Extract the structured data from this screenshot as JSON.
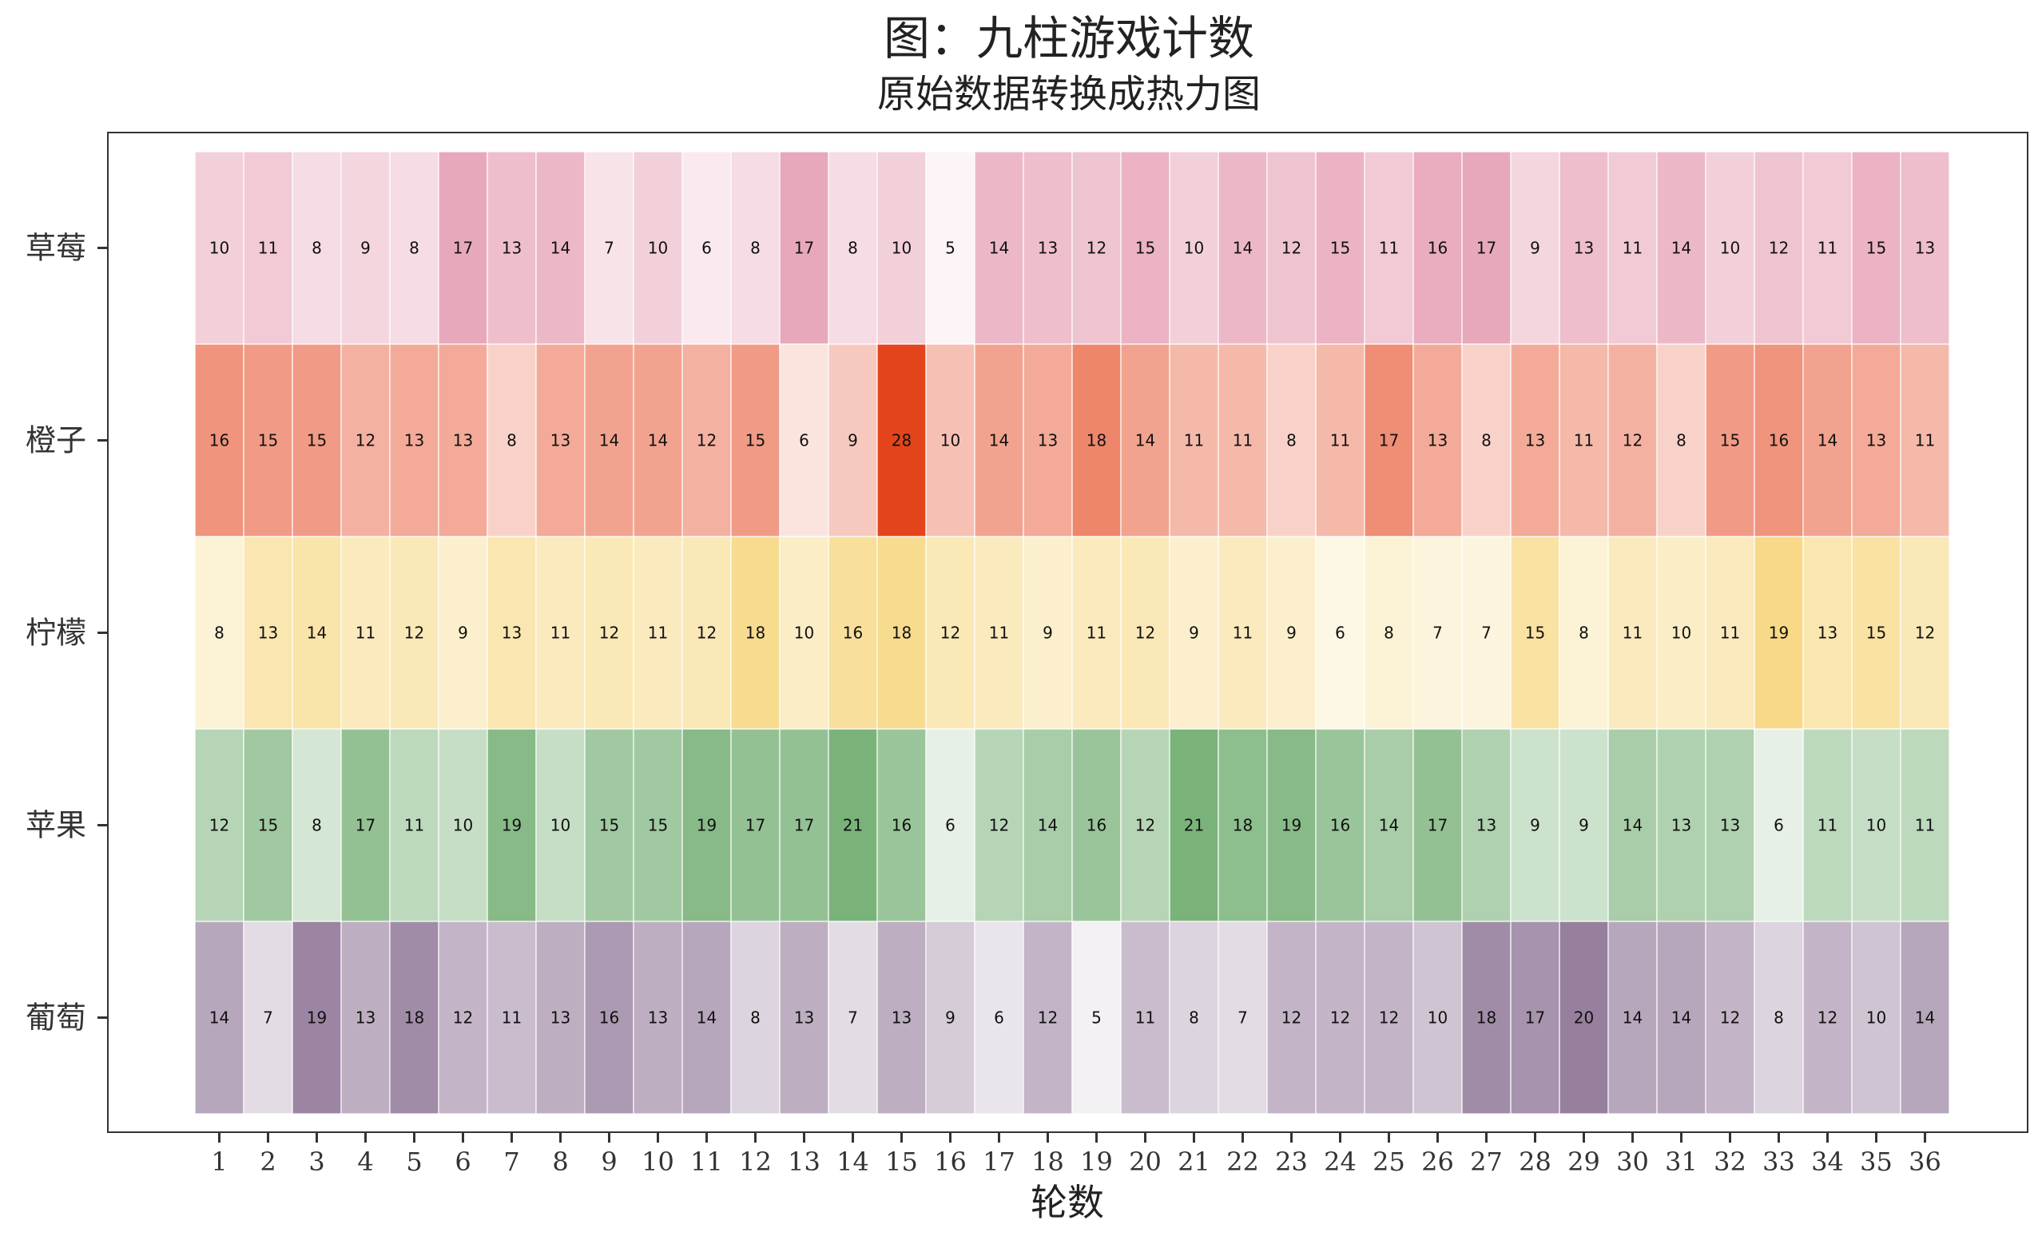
{
  "chart_data": {
    "type": "heatmap",
    "title": "图：九柱游戏计数",
    "subtitle": "原始数据转换成热力图",
    "xlabel": "轮数",
    "ylabel": "",
    "x": [
      "1",
      "2",
      "3",
      "4",
      "5",
      "6",
      "7",
      "8",
      "9",
      "10",
      "11",
      "12",
      "13",
      "14",
      "15",
      "16",
      "17",
      "18",
      "19",
      "20",
      "21",
      "22",
      "23",
      "24",
      "25",
      "26",
      "27",
      "28",
      "29",
      "30",
      "31",
      "32",
      "33",
      "34",
      "35",
      "36"
    ],
    "series": [
      {
        "name": "草莓",
        "color": "#d9708f",
        "values": [
          10,
          11,
          8,
          9,
          8,
          17,
          13,
          14,
          7,
          10,
          6,
          8,
          17,
          8,
          10,
          5,
          14,
          13,
          12,
          15,
          10,
          14,
          12,
          15,
          11,
          16,
          17,
          9,
          13,
          11,
          14,
          10,
          12,
          11,
          15,
          13
        ]
      },
      {
        "name": "橙子",
        "color": "#e4441c",
        "values": [
          16,
          15,
          15,
          12,
          13,
          13,
          8,
          13,
          14,
          14,
          12,
          15,
          6,
          9,
          28,
          10,
          14,
          13,
          18,
          14,
          11,
          11,
          8,
          11,
          17,
          13,
          8,
          13,
          11,
          12,
          8,
          15,
          16,
          14,
          13,
          11
        ]
      },
      {
        "name": "柠檬",
        "color": "#f3c851",
        "values": [
          8,
          13,
          14,
          11,
          12,
          9,
          13,
          11,
          12,
          11,
          12,
          18,
          10,
          16,
          18,
          12,
          11,
          9,
          11,
          12,
          9,
          11,
          9,
          6,
          8,
          7,
          7,
          15,
          8,
          11,
          10,
          11,
          19,
          13,
          15,
          12
        ]
      },
      {
        "name": "苹果",
        "color": "#4f9a4f",
        "values": [
          12,
          15,
          8,
          17,
          11,
          10,
          19,
          10,
          15,
          15,
          19,
          17,
          17,
          21,
          16,
          6,
          12,
          14,
          16,
          12,
          21,
          18,
          19,
          16,
          14,
          17,
          13,
          9,
          9,
          14,
          13,
          13,
          6,
          11,
          10,
          11
        ]
      },
      {
        "name": "葡萄",
        "color": "#6e4d78",
        "values": [
          14,
          7,
          19,
          13,
          18,
          12,
          11,
          13,
          16,
          13,
          14,
          8,
          13,
          7,
          13,
          9,
          6,
          12,
          5,
          11,
          8,
          7,
          12,
          12,
          12,
          10,
          18,
          17,
          20,
          14,
          14,
          12,
          8,
          12,
          10,
          14
        ]
      }
    ]
  }
}
